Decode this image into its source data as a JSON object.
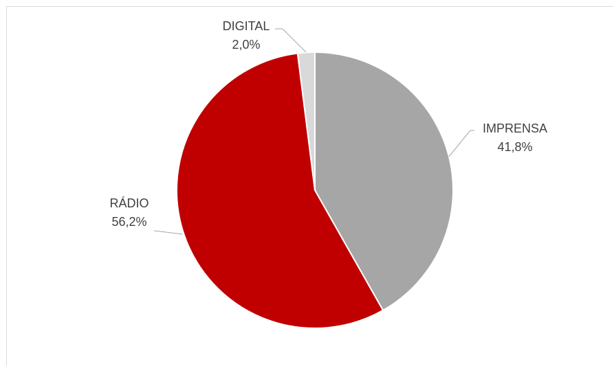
{
  "chart_data": {
    "type": "pie",
    "title": "",
    "slices": [
      {
        "label": "IMPRENSA",
        "value": 41.8,
        "value_text": "41,8%",
        "color": "#a6a6a6"
      },
      {
        "label": "RÁDIO",
        "value": 56.2,
        "value_text": "56,2%",
        "color": "#c00000"
      },
      {
        "label": "DIGITAL",
        "value": 2.0,
        "value_text": "2,0%",
        "color": "#d9d9d9"
      }
    ],
    "legend": "none",
    "data_labels": "outside with leader lines"
  }
}
